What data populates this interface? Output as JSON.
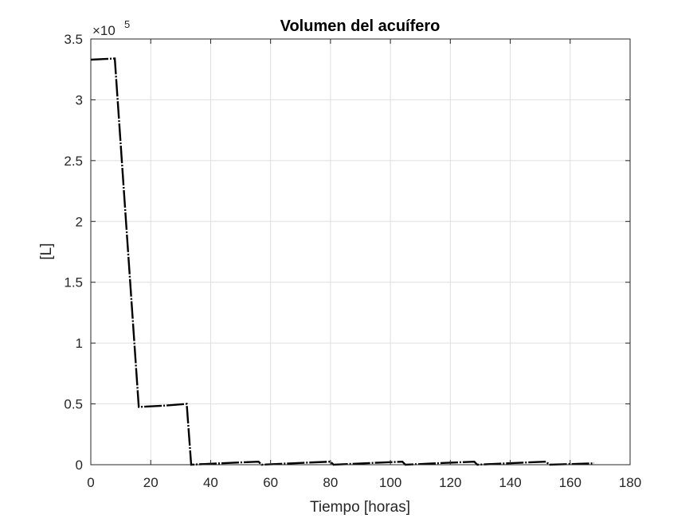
{
  "chart_data": {
    "type": "line",
    "title": "Volumen del acuífero",
    "xlabel": "Tiempo [horas]",
    "ylabel": "[L]",
    "y_exponent_label": "×10",
    "y_exponent_power": "5",
    "xlim": [
      0,
      180
    ],
    "ylim": [
      0,
      350000
    ],
    "x_ticks": [
      0,
      20,
      40,
      60,
      80,
      100,
      120,
      140,
      160,
      180
    ],
    "x_tick_labels": [
      "0",
      "20",
      "40",
      "60",
      "80",
      "100",
      "120",
      "140",
      "160",
      "180"
    ],
    "y_ticks": [
      0,
      50000,
      100000,
      150000,
      200000,
      250000,
      300000,
      350000
    ],
    "y_tick_labels": [
      "0",
      "0.5",
      "1",
      "1.5",
      "2",
      "2.5",
      "3",
      "3.5"
    ],
    "grid": true,
    "box": true,
    "series": [
      {
        "color": "#000000",
        "line_style": "dash-dot",
        "x": [
          0,
          8,
          16,
          24,
          32,
          33.5,
          40,
          48,
          56,
          57,
          64,
          72,
          80,
          81,
          88,
          96,
          104,
          105,
          112,
          120,
          128,
          129,
          136,
          144,
          152,
          153,
          160,
          168
        ],
        "y": [
          333000,
          334000,
          47500,
          48500,
          50000,
          0,
          800,
          1700,
          2500,
          0,
          800,
          1700,
          2500,
          0,
          800,
          1700,
          2500,
          0,
          800,
          1700,
          2500,
          0,
          800,
          1700,
          2500,
          0,
          500,
          1200
        ]
      }
    ]
  }
}
